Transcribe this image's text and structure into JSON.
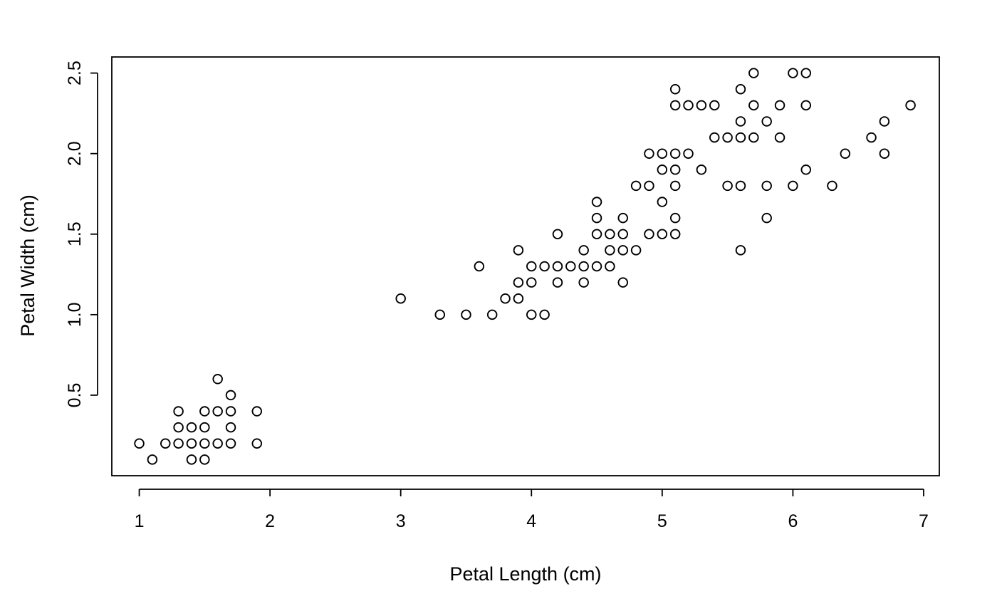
{
  "chart_data": {
    "type": "scatter",
    "title": "",
    "xlabel": "Petal Length (cm)",
    "ylabel": "Petal Width (cm)",
    "xlim": [
      0.79,
      7.12
    ],
    "ylim": [
      0.0,
      2.6
    ],
    "x_ticks": [
      1,
      2,
      3,
      4,
      5,
      6,
      7
    ],
    "x_tick_labels": [
      "1",
      "2",
      "3",
      "4",
      "5",
      "6",
      "7"
    ],
    "y_ticks": [
      0.5,
      1.0,
      1.5,
      2.0,
      2.5
    ],
    "y_tick_labels": [
      "0.5",
      "1.0",
      "1.5",
      "2.0",
      "2.5"
    ],
    "grid": false,
    "legend": "none",
    "marker": "open-circle",
    "colors": {
      "marker_stroke": "#000000",
      "axis": "#000000",
      "background": "#ffffff"
    },
    "series": [
      {
        "points": [
          [
            1.0,
            0.2
          ],
          [
            1.1,
            0.1
          ],
          [
            1.2,
            0.2
          ],
          [
            1.3,
            0.2
          ],
          [
            1.3,
            0.3
          ],
          [
            1.3,
            0.4
          ],
          [
            1.4,
            0.1
          ],
          [
            1.4,
            0.2
          ],
          [
            1.4,
            0.3
          ],
          [
            1.5,
            0.1
          ],
          [
            1.5,
            0.2
          ],
          [
            1.5,
            0.3
          ],
          [
            1.5,
            0.4
          ],
          [
            1.6,
            0.2
          ],
          [
            1.6,
            0.4
          ],
          [
            1.6,
            0.6
          ],
          [
            1.7,
            0.2
          ],
          [
            1.7,
            0.3
          ],
          [
            1.7,
            0.4
          ],
          [
            1.7,
            0.5
          ],
          [
            1.9,
            0.2
          ],
          [
            1.9,
            0.4
          ],
          [
            3.0,
            1.1
          ],
          [
            3.3,
            1.0
          ],
          [
            3.5,
            1.0
          ],
          [
            3.6,
            1.3
          ],
          [
            3.7,
            1.0
          ],
          [
            3.8,
            1.1
          ],
          [
            3.9,
            1.1
          ],
          [
            3.9,
            1.2
          ],
          [
            3.9,
            1.4
          ],
          [
            4.0,
            1.0
          ],
          [
            4.0,
            1.2
          ],
          [
            4.0,
            1.3
          ],
          [
            4.1,
            1.0
          ],
          [
            4.1,
            1.3
          ],
          [
            4.2,
            1.2
          ],
          [
            4.2,
            1.3
          ],
          [
            4.2,
            1.5
          ],
          [
            4.3,
            1.3
          ],
          [
            4.4,
            1.2
          ],
          [
            4.4,
            1.3
          ],
          [
            4.4,
            1.4
          ],
          [
            4.5,
            1.3
          ],
          [
            4.5,
            1.5
          ],
          [
            4.5,
            1.6
          ],
          [
            4.5,
            1.7
          ],
          [
            4.6,
            1.3
          ],
          [
            4.6,
            1.4
          ],
          [
            4.6,
            1.5
          ],
          [
            4.7,
            1.2
          ],
          [
            4.7,
            1.4
          ],
          [
            4.7,
            1.5
          ],
          [
            4.7,
            1.6
          ],
          [
            4.8,
            1.4
          ],
          [
            4.8,
            1.8
          ],
          [
            4.9,
            1.5
          ],
          [
            4.9,
            1.8
          ],
          [
            4.9,
            2.0
          ],
          [
            5.0,
            1.5
          ],
          [
            5.0,
            1.7
          ],
          [
            5.0,
            1.9
          ],
          [
            5.0,
            2.0
          ],
          [
            5.1,
            1.5
          ],
          [
            5.1,
            1.6
          ],
          [
            5.1,
            1.8
          ],
          [
            5.1,
            1.9
          ],
          [
            5.1,
            2.0
          ],
          [
            5.1,
            2.3
          ],
          [
            5.1,
            2.4
          ],
          [
            5.2,
            2.0
          ],
          [
            5.2,
            2.3
          ],
          [
            5.3,
            1.9
          ],
          [
            5.3,
            2.3
          ],
          [
            5.4,
            2.1
          ],
          [
            5.4,
            2.3
          ],
          [
            5.5,
            1.8
          ],
          [
            5.5,
            2.1
          ],
          [
            5.6,
            1.4
          ],
          [
            5.6,
            1.8
          ],
          [
            5.6,
            2.1
          ],
          [
            5.6,
            2.2
          ],
          [
            5.6,
            2.4
          ],
          [
            5.7,
            2.1
          ],
          [
            5.7,
            2.3
          ],
          [
            5.7,
            2.5
          ],
          [
            5.8,
            1.6
          ],
          [
            5.8,
            1.8
          ],
          [
            5.8,
            2.2
          ],
          [
            5.9,
            2.1
          ],
          [
            5.9,
            2.3
          ],
          [
            6.0,
            1.8
          ],
          [
            6.0,
            2.5
          ],
          [
            6.1,
            1.9
          ],
          [
            6.1,
            2.3
          ],
          [
            6.1,
            2.5
          ],
          [
            6.3,
            1.8
          ],
          [
            6.4,
            2.0
          ],
          [
            6.6,
            2.1
          ],
          [
            6.7,
            2.0
          ],
          [
            6.7,
            2.2
          ],
          [
            6.9,
            2.3
          ]
        ]
      }
    ]
  }
}
